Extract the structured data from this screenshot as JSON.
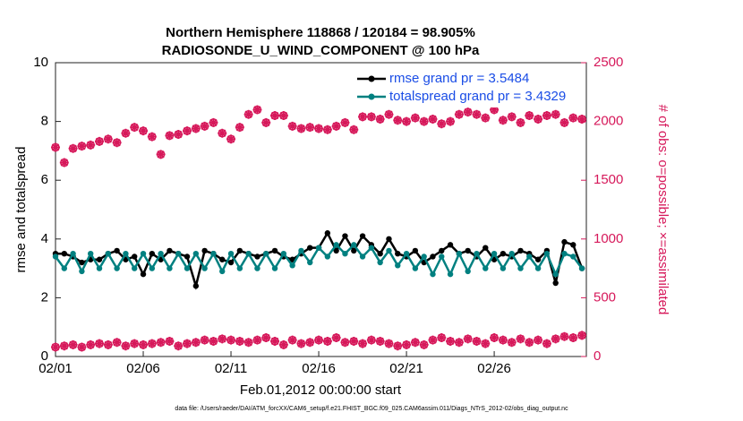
{
  "chart_data": {
    "type": "line",
    "title": "Northern Hemisphere 118868 / 120184 = 98.905%",
    "subtitle": "RADIOSONDE_U_WIND_COMPONENT @ 100 hPa",
    "xlabel": "Feb.01,2012 00:00:00 start",
    "ylabel": "rmse and totalspread",
    "y2label": "# of obs: o=possible; ×=assimilated",
    "footnote": "data file: /Users/raeder/DAI/ATM_forcXX/CAM6_setup/f.e21.FHIST_BGC.f09_025.CAM6assim.011/Diags_NTrS_2012-02/obs_diag_output.nc",
    "xlim": [
      0,
      30.25
    ],
    "xticks": [
      {
        "value": 0,
        "label": "02/01"
      },
      {
        "value": 5,
        "label": "02/06"
      },
      {
        "value": 10,
        "label": "02/11"
      },
      {
        "value": 15,
        "label": "02/16"
      },
      {
        "value": 20,
        "label": "02/21"
      },
      {
        "value": 25,
        "label": "02/26"
      }
    ],
    "ylim": [
      0,
      10
    ],
    "yticks": [
      0,
      2,
      4,
      6,
      8,
      10
    ],
    "y2lim": [
      0,
      2500
    ],
    "y2ticks": [
      0,
      500,
      1000,
      1500,
      2000,
      2500
    ],
    "legend": "upper right",
    "x": [
      0,
      0.5,
      1,
      1.5,
      2,
      2.5,
      3,
      3.5,
      4,
      4.5,
      5,
      5.5,
      6,
      6.5,
      7,
      7.5,
      8,
      8.5,
      9,
      9.5,
      10,
      10.5,
      11,
      11.5,
      12,
      12.5,
      13,
      13.5,
      14,
      14.5,
      15,
      15.5,
      16,
      16.5,
      17,
      17.5,
      18,
      18.5,
      19,
      19.5,
      20,
      20.5,
      21,
      21.5,
      22,
      22.5,
      23,
      23.5,
      24,
      24.5,
      25,
      25.5,
      26,
      26.5,
      27,
      27.5,
      28,
      28.5,
      29,
      29.5,
      30
    ],
    "series": [
      {
        "name": "rmse grand pr = 3.5484",
        "color": "#000000",
        "values": [
          3.5,
          3.5,
          3.4,
          3.2,
          3.3,
          3.3,
          3.5,
          3.6,
          3.3,
          3.4,
          2.8,
          3.5,
          3.3,
          3.6,
          3.5,
          3.4,
          2.4,
          3.6,
          3.5,
          3.3,
          3.2,
          3.6,
          3.5,
          3.4,
          3.5,
          3.6,
          3.4,
          3.3,
          3.5,
          3.7,
          3.7,
          4.2,
          3.6,
          4.1,
          3.6,
          4.1,
          3.8,
          3.5,
          4.0,
          3.5,
          3.4,
          3.6,
          3.2,
          3.4,
          3.6,
          3.8,
          3.5,
          3.6,
          3.4,
          3.7,
          3.3,
          3.5,
          3.4,
          3.6,
          3.5,
          3.3,
          3.6,
          2.5,
          3.9,
          3.8,
          3.0
        ]
      },
      {
        "name": "totalspread grand pr = 3.4329",
        "color": "#008080",
        "values": [
          3.4,
          3.0,
          3.5,
          2.9,
          3.5,
          3.0,
          3.5,
          3.0,
          3.5,
          3.0,
          3.5,
          3.0,
          3.5,
          3.0,
          3.5,
          3.0,
          3.5,
          3.0,
          3.5,
          2.9,
          3.5,
          3.0,
          3.5,
          3.0,
          3.5,
          3.0,
          3.5,
          3.1,
          3.6,
          3.2,
          3.7,
          3.4,
          3.8,
          3.5,
          3.8,
          3.4,
          3.7,
          3.2,
          3.6,
          3.1,
          3.5,
          3.0,
          3.4,
          2.8,
          3.4,
          2.8,
          3.5,
          2.9,
          3.5,
          3.0,
          3.5,
          3.0,
          3.5,
          3.0,
          3.4,
          3.0,
          3.5,
          2.8,
          3.5,
          3.4,
          3.0
        ]
      }
    ],
    "obs_color": "#d6185a",
    "obs_series": [
      {
        "marker": "o",
        "axis": "y2",
        "values": [
          1780,
          1650,
          1770,
          1790,
          1800,
          1830,
          1850,
          1820,
          1900,
          1950,
          1920,
          1870,
          1720,
          1880,
          1890,
          1920,
          1940,
          1960,
          1990,
          1900,
          1850,
          1950,
          2060,
          2100,
          1990,
          2050,
          2050,
          1960,
          1940,
          1950,
          1940,
          1930,
          1960,
          1990,
          1930,
          2040,
          2040,
          2020,
          2060,
          2010,
          2000,
          2030,
          2000,
          2020,
          1980,
          2000,
          2060,
          2080,
          2060,
          2030,
          2100,
          2010,
          2040,
          1990,
          2050,
          2020,
          2050,
          2060,
          1990,
          2030,
          2020
        ]
      },
      {
        "marker": "x",
        "axis": "y2",
        "values": [
          1780,
          1650,
          1770,
          1790,
          1800,
          1830,
          1850,
          1820,
          1900,
          1950,
          1920,
          1870,
          1720,
          1880,
          1890,
          1920,
          1940,
          1960,
          1990,
          1900,
          1850,
          1950,
          2060,
          2100,
          1990,
          2050,
          2050,
          1960,
          1940,
          1950,
          1940,
          1930,
          1960,
          1990,
          1930,
          2040,
          2040,
          2020,
          2060,
          2010,
          2000,
          2030,
          2000,
          2020,
          1980,
          2000,
          2060,
          2080,
          2060,
          2030,
          2100,
          2010,
          2040,
          1990,
          2050,
          2020,
          2050,
          2060,
          1990,
          2030,
          2020
        ]
      },
      {
        "marker": "o",
        "axis": "y2",
        "values": [
          80,
          90,
          100,
          80,
          100,
          110,
          100,
          120,
          90,
          110,
          100,
          110,
          120,
          130,
          90,
          110,
          120,
          140,
          130,
          150,
          140,
          130,
          120,
          140,
          160,
          130,
          100,
          140,
          110,
          120,
          140,
          130,
          160,
          120,
          130,
          110,
          140,
          130,
          110,
          90,
          100,
          120,
          100,
          140,
          160,
          130,
          120,
          150,
          130,
          110,
          160,
          140,
          120,
          150,
          120,
          140,
          110,
          150,
          170,
          160,
          180
        ]
      },
      {
        "marker": "x",
        "axis": "y2",
        "values": [
          80,
          90,
          100,
          80,
          100,
          110,
          100,
          120,
          90,
          110,
          100,
          110,
          120,
          130,
          90,
          110,
          120,
          140,
          130,
          150,
          140,
          130,
          120,
          140,
          160,
          130,
          100,
          140,
          110,
          120,
          140,
          130,
          160,
          120,
          130,
          110,
          140,
          130,
          110,
          90,
          100,
          120,
          100,
          140,
          160,
          130,
          120,
          150,
          130,
          110,
          160,
          140,
          120,
          150,
          120,
          140,
          110,
          150,
          170,
          160,
          180
        ]
      }
    ]
  }
}
